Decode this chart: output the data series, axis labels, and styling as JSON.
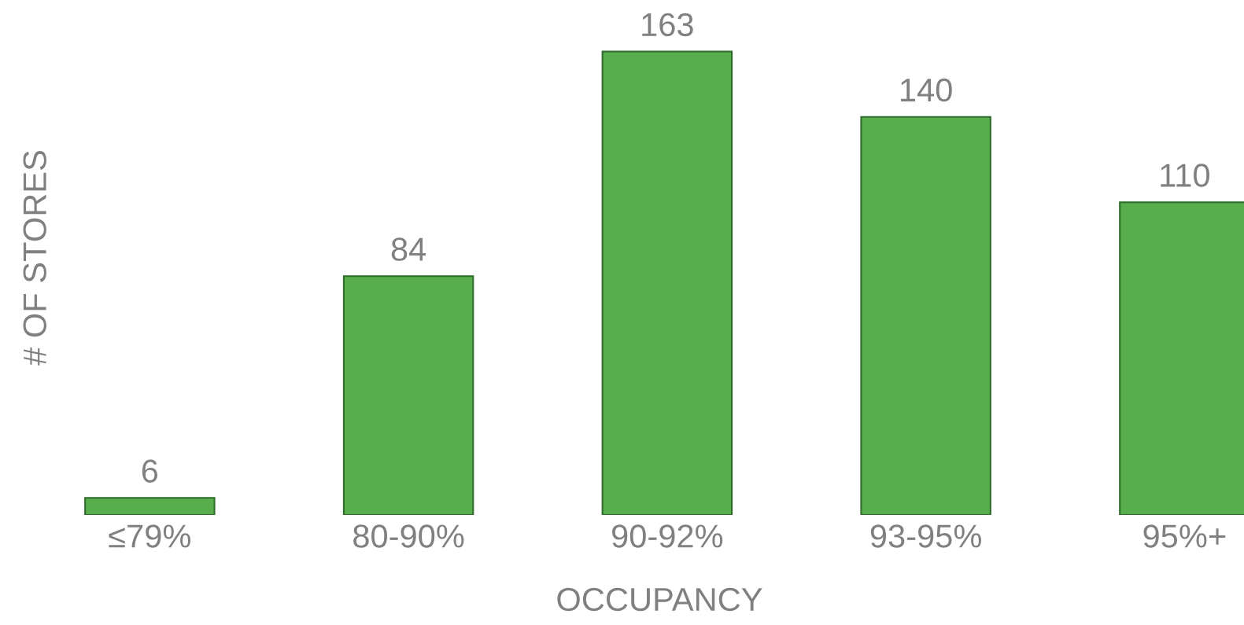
{
  "chart_data": {
    "type": "bar",
    "xlabel": "OCCUPANCY",
    "ylabel": "# OF STORES",
    "categories": [
      "≤79%",
      "80-90%",
      "90-92%",
      "93-95%",
      "95%+"
    ],
    "values": [
      6,
      84,
      163,
      140,
      110
    ],
    "color": "#58ad4c",
    "data_labels": true,
    "grid": false,
    "legend": false
  }
}
